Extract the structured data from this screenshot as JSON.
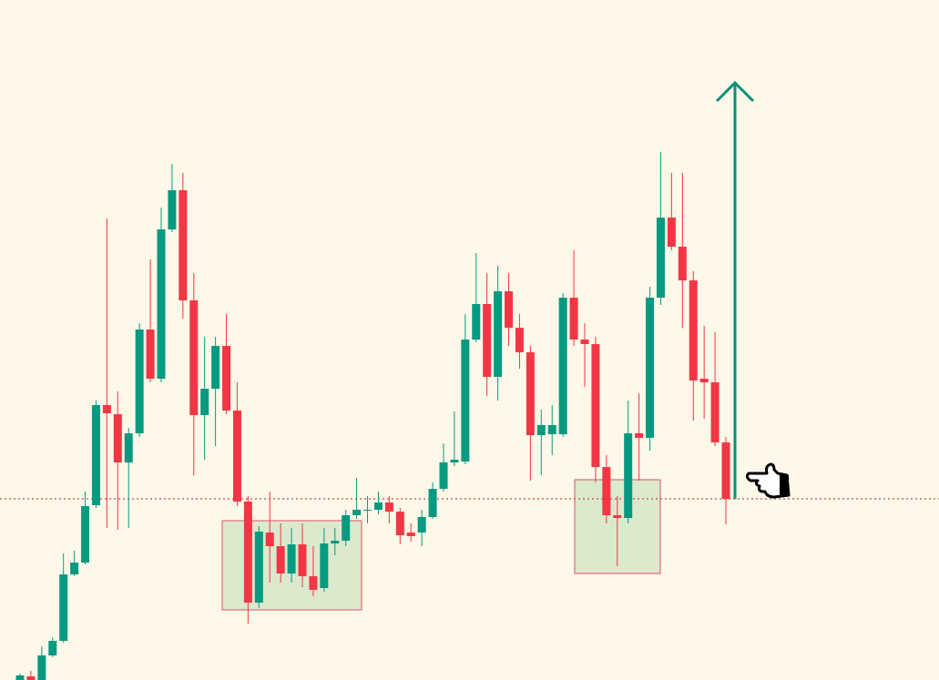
{
  "chart_data": {
    "type": "candlestick",
    "up_color": "#089981",
    "down_color": "#f23645",
    "ylim": [
      0,
      747
    ],
    "price_line": 199,
    "open": [
      0,
      4,
      0,
      27,
      43,
      116,
      129,
      192,
      302,
      292,
      239,
      271,
      385,
      331,
      495,
      538,
      417,
      291,
      320,
      367,
      296,
      196,
      85,
      162,
      147,
      117,
      149,
      114,
      101,
      150,
      153,
      181,
      186,
      187,
      195,
      185,
      162,
      162,
      179,
      210,
      239,
      240,
      374,
      413,
      333,
      427,
      387,
      360,
      269,
      270,
      270,
      420,
      374,
      369,
      234,
      181,
      178,
      271,
      266,
      420,
      508,
      476,
      439,
      331,
      327,
      261
    ],
    "high": [
      7,
      10,
      37,
      47,
      139,
      142,
      207,
      307,
      507,
      317,
      277,
      392,
      462,
      519,
      567,
      557,
      447,
      377,
      377,
      402,
      327,
      202,
      169,
      207,
      172,
      167,
      172,
      147,
      167,
      167,
      187,
      222,
      202,
      207,
      202,
      189,
      172,
      187,
      217,
      260,
      295,
      402,
      469,
      447,
      455,
      447,
      402,
      367,
      297,
      302,
      425,
      472,
      392,
      377,
      247,
      202,
      307,
      315,
      432,
      580,
      557,
      557,
      449,
      389,
      382,
      267
    ],
    "low": [
      0,
      0,
      0,
      25,
      41,
      114,
      127,
      189,
      167,
      165,
      167,
      267,
      327,
      327,
      492,
      397,
      225,
      242,
      257,
      292,
      191,
      62,
      79,
      107,
      107,
      107,
      102,
      92,
      97,
      137,
      147,
      177,
      172,
      182,
      172,
      149,
      152,
      147,
      177,
      207,
      235,
      237,
      371,
      312,
      307,
      367,
      342,
      219,
      225,
      247,
      267,
      367,
      322,
      217,
      172,
      125,
      172,
      219,
      252,
      412,
      472,
      387,
      285,
      287,
      257,
      171
    ],
    "close": [
      5,
      0,
      27,
      43,
      116,
      129,
      191,
      302,
      293,
      239,
      271,
      385,
      331,
      495,
      538,
      417,
      291,
      320,
      367,
      296,
      196,
      85,
      163,
      147,
      117,
      149,
      114,
      99,
      150,
      153,
      181,
      187,
      187,
      195,
      185,
      159,
      158,
      179,
      210,
      239,
      242,
      374,
      413,
      333,
      427,
      387,
      360,
      269,
      280,
      280,
      420,
      374,
      369,
      234,
      181,
      178,
      271,
      266,
      420,
      508,
      476,
      439,
      329,
      327,
      261,
      199
    ]
  }
}
